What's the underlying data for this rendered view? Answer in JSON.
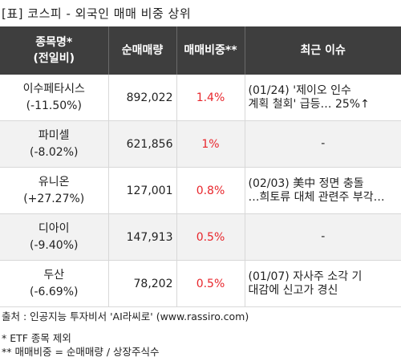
{
  "title": "[표] 코스피 - 외국인 매매 비중 상위",
  "headers": {
    "stock_line1": "종목명*",
    "stock_line2": "(전일비)",
    "net_volume": "순매매량",
    "trade_ratio": "매매비중**",
    "issue": "최근 이슈"
  },
  "rows": [
    {
      "name": "이수페타시스",
      "change": "(-11.50%)",
      "volume": "892,022",
      "ratio": "1.4%",
      "issue_line1": "(01/24) '제이오 인수",
      "issue_line2": "계획 철회' 급등… 25%↑"
    },
    {
      "name": "파미셀",
      "change": "(-8.02%)",
      "volume": "621,856",
      "ratio": "1%",
      "issue_line1": "-",
      "issue_line2": ""
    },
    {
      "name": "유니온",
      "change": "(+27.27%)",
      "volume": "127,001",
      "ratio": "0.8%",
      "issue_line1": "(02/03) 美中 정면 충돌",
      "issue_line2": "…희토류 대체 관련주 부각…"
    },
    {
      "name": "디아이",
      "change": "(-9.40%)",
      "volume": "147,913",
      "ratio": "0.5%",
      "issue_line1": "-",
      "issue_line2": ""
    },
    {
      "name": "두산",
      "change": "(-6.69%)",
      "volume": "78,202",
      "ratio": "0.5%",
      "issue_line1": "(01/07) 자사주 소각 기",
      "issue_line2": "대감에 신고가 경신"
    }
  ],
  "footer": {
    "source": "출처 : 인공지능 투자비서 'AI라씨로' (www.rassiro.com)",
    "note1": "* ETF 종목 제외",
    "note2": "** 매매비중 = 순매매량 / 상장주식수"
  },
  "colors": {
    "header_bg": "#3e3e3e",
    "ratio_text": "#e8262c",
    "alt_row_bg": "#f2f2f2"
  }
}
